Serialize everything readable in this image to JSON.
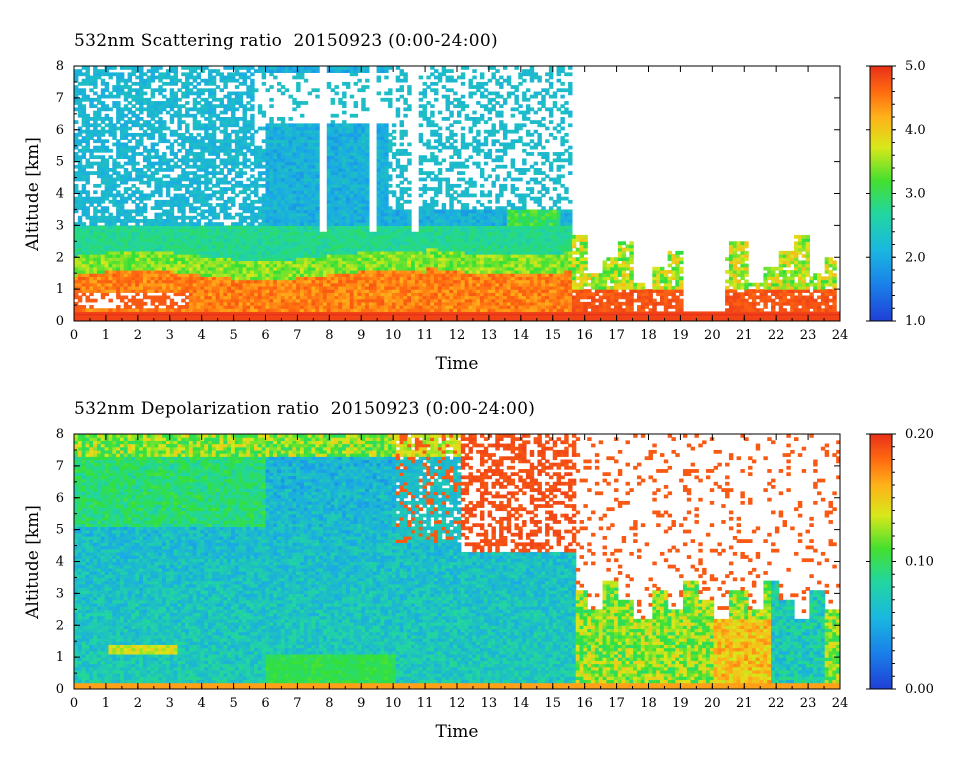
{
  "chart_data": [
    {
      "type": "heatmap",
      "title": "532nm Scattering ratio  20150923 (0:00-24:00)",
      "xlabel": "Time",
      "ylabel": "Altitude [km]",
      "xlim": [
        0,
        24
      ],
      "ylim": [
        0,
        8
      ],
      "x_ticks": [
        "0",
        "1",
        "2",
        "3",
        "4",
        "5",
        "6",
        "7",
        "8",
        "9",
        "10",
        "11",
        "12",
        "13",
        "14",
        "15",
        "16",
        "17",
        "18",
        "19",
        "20",
        "21",
        "22",
        "23",
        "24"
      ],
      "y_ticks": [
        "0",
        "1",
        "2",
        "3",
        "4",
        "5",
        "6",
        "7",
        "8"
      ],
      "colorbar": {
        "range": [
          1.0,
          5.0
        ],
        "tick_labels": [
          "1.0",
          "2.0",
          "3.0",
          "4.0",
          "5.0"
        ],
        "colors": [
          "#1f3fd6",
          "#1aa8e8",
          "#22d6a0",
          "#33e03a",
          "#d8e81a",
          "#ffb21a",
          "#ff6a10",
          "#e8301a"
        ]
      },
      "description_points": {
        "boundary_layer_top_km": 1.5,
        "cloud_edge_times_h": [
          5.5,
          9.8,
          12.5,
          15.5
        ]
      }
    },
    {
      "type": "heatmap",
      "title": "532nm Depolarization ratio  20150923 (0:00-24:00)",
      "xlabel": "Time",
      "ylabel": "Altitude [km]",
      "xlim": [
        0,
        24
      ],
      "ylim": [
        0,
        8
      ],
      "x_ticks": [
        "0",
        "1",
        "2",
        "3",
        "4",
        "5",
        "6",
        "7",
        "8",
        "9",
        "10",
        "11",
        "12",
        "13",
        "14",
        "15",
        "16",
        "17",
        "18",
        "19",
        "20",
        "21",
        "22",
        "23",
        "24"
      ],
      "y_ticks": [
        "0",
        "1",
        "2",
        "3",
        "4",
        "5",
        "6",
        "7",
        "8"
      ],
      "colorbar": {
        "range": [
          0.0,
          0.2
        ],
        "tick_labels": [
          "0.00",
          "0.10",
          "0.20"
        ],
        "colors": [
          "#1f3fd6",
          "#1aa8e8",
          "#22d6a0",
          "#33e03a",
          "#d8e81a",
          "#ffb21a",
          "#ff6a10",
          "#e8301a"
        ]
      }
    }
  ]
}
